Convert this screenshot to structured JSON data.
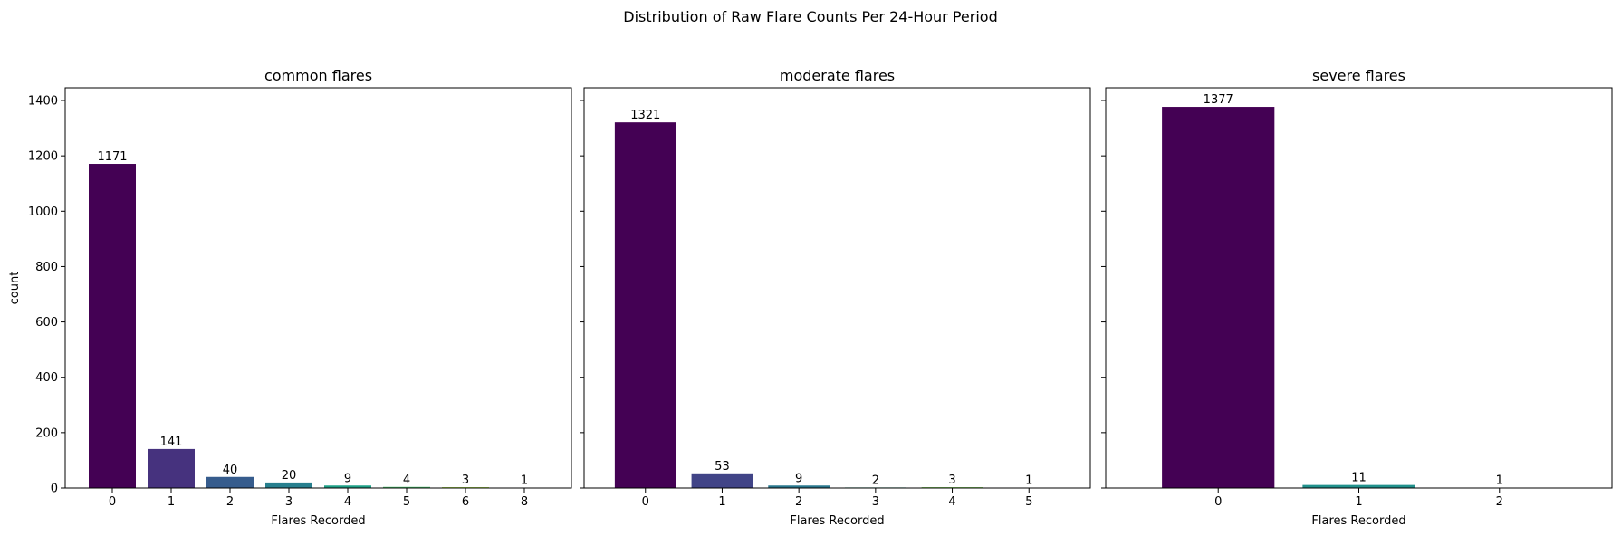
{
  "figure": {
    "suptitle": "Distribution of Raw Flare Counts Per 24-Hour Period"
  },
  "chart_data": [
    {
      "type": "bar",
      "title": "common flares",
      "xlabel": "Flares Recorded",
      "ylabel": "count",
      "categories": [
        "0",
        "1",
        "2",
        "3",
        "4",
        "5",
        "6",
        "8"
      ],
      "values": [
        1171,
        141,
        40,
        20,
        9,
        4,
        3,
        1
      ],
      "colors": [
        "#440154",
        "#46327e",
        "#365c8d",
        "#277f8e",
        "#1fa187",
        "#4ac16d",
        "#a0da39",
        "#fde725"
      ],
      "ylim": [
        0,
        1445.85
      ],
      "yticks": [
        0,
        200,
        400,
        600,
        800,
        1000,
        1200,
        1400
      ]
    },
    {
      "type": "bar",
      "title": "moderate flares",
      "xlabel": "Flares Recorded",
      "ylabel": "",
      "categories": [
        "0",
        "1",
        "2",
        "3",
        "4",
        "5"
      ],
      "values": [
        1321,
        53,
        9,
        2,
        3,
        1
      ],
      "colors": [
        "#440154",
        "#414487",
        "#2a788e",
        "#22a884",
        "#7ad151",
        "#fde725"
      ],
      "ylim": [
        0,
        1445.85
      ],
      "yticks": [
        0,
        200,
        400,
        600,
        800,
        1000,
        1200,
        1400
      ]
    },
    {
      "type": "bar",
      "title": "severe flares",
      "xlabel": "Flares Recorded",
      "ylabel": "",
      "categories": [
        "0",
        "1",
        "2"
      ],
      "values": [
        1377,
        11,
        1
      ],
      "colors": [
        "#440154",
        "#21918c",
        "#fde725"
      ],
      "ylim": [
        0,
        1445.85
      ],
      "yticks": [
        0,
        200,
        400,
        600,
        800,
        1000,
        1200,
        1400
      ]
    }
  ]
}
